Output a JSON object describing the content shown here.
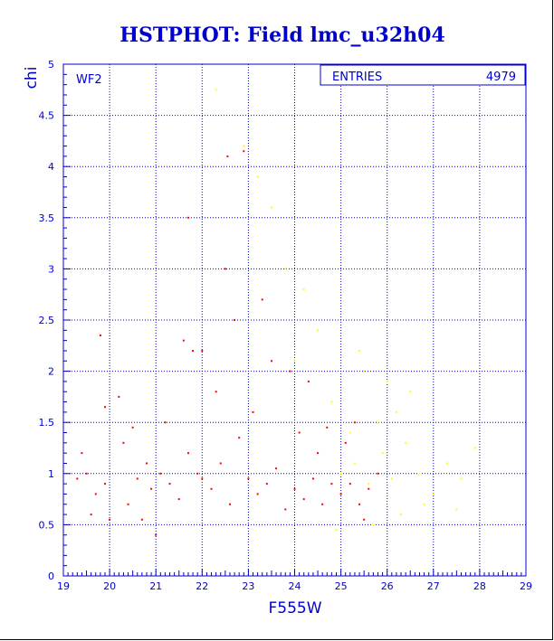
{
  "chart_data": {
    "type": "scatter",
    "title": "HSTPHOT: Field lmc_u32h04",
    "panel_label": "WF2",
    "xlabel": "F555W",
    "ylabel": "chi",
    "xlim": [
      19,
      29
    ],
    "ylim": [
      0,
      5
    ],
    "x_ticks": [
      "19",
      "20",
      "21",
      "22",
      "23",
      "24",
      "25",
      "26",
      "27",
      "28",
      "29"
    ],
    "y_ticks": [
      "0",
      "0.5",
      "1",
      "1.5",
      "2",
      "2.5",
      "3",
      "3.5",
      "4",
      "4.5",
      "5"
    ],
    "grid": true,
    "stats": {
      "label": "ENTRIES",
      "value": "4979"
    },
    "series": [
      {
        "color": "#ff0000",
        "values": [
          [
            19.3,
            0.95
          ],
          [
            19.5,
            1.0
          ],
          [
            19.7,
            0.8
          ],
          [
            19.9,
            0.9
          ],
          [
            19.6,
            0.6
          ],
          [
            19.4,
            1.2
          ],
          [
            19.8,
            2.35
          ],
          [
            19.9,
            1.65
          ],
          [
            20.2,
            1.75
          ],
          [
            20.4,
            0.7
          ],
          [
            20.6,
            0.95
          ],
          [
            20.8,
            1.1
          ],
          [
            20.3,
            1.3
          ],
          [
            20.9,
            0.85
          ],
          [
            20.5,
            1.45
          ],
          [
            20.7,
            0.55
          ],
          [
            21.1,
            1.0
          ],
          [
            21.3,
            0.9
          ],
          [
            21.5,
            0.75
          ],
          [
            21.7,
            1.2
          ],
          [
            21.9,
            1.0
          ],
          [
            21.2,
            1.5
          ],
          [
            21.6,
            2.3
          ],
          [
            21.8,
            2.2
          ],
          [
            22.0,
            0.95
          ],
          [
            22.2,
            0.85
          ],
          [
            22.4,
            1.1
          ],
          [
            22.6,
            0.7
          ],
          [
            22.8,
            1.35
          ],
          [
            22.3,
            1.8
          ],
          [
            22.5,
            3.0
          ],
          [
            22.7,
            2.5
          ],
          [
            23.0,
            0.95
          ],
          [
            23.2,
            0.8
          ],
          [
            23.4,
            0.9
          ],
          [
            23.6,
            1.05
          ],
          [
            23.8,
            0.65
          ],
          [
            23.1,
            1.6
          ],
          [
            23.3,
            2.7
          ],
          [
            23.5,
            2.1
          ],
          [
            24.0,
            0.85
          ],
          [
            24.2,
            0.75
          ],
          [
            24.4,
            0.95
          ],
          [
            24.6,
            0.7
          ],
          [
            24.8,
            0.9
          ],
          [
            24.1,
            1.4
          ],
          [
            24.3,
            1.9
          ],
          [
            24.5,
            1.2
          ],
          [
            25.0,
            0.8
          ],
          [
            25.2,
            0.9
          ],
          [
            25.4,
            0.7
          ],
          [
            25.6,
            0.85
          ],
          [
            25.8,
            1.0
          ],
          [
            25.1,
            1.3
          ],
          [
            25.5,
            0.55
          ],
          [
            25.3,
            1.5
          ],
          [
            22.55,
            4.1
          ],
          [
            22.9,
            4.15
          ],
          [
            21.7,
            3.5
          ],
          [
            22.0,
            2.2
          ],
          [
            23.9,
            2.0
          ],
          [
            24.7,
            1.45
          ],
          [
            21.0,
            0.4
          ],
          [
            20.0,
            0.55
          ]
        ]
      },
      {
        "color": "#ffff00",
        "values": [
          [
            25.0,
            1.0
          ],
          [
            25.3,
            1.1
          ],
          [
            25.6,
            0.9
          ],
          [
            25.9,
            1.2
          ],
          [
            26.1,
            0.95
          ],
          [
            26.4,
            1.3
          ],
          [
            26.7,
            1.0
          ],
          [
            27.0,
            0.8
          ],
          [
            27.3,
            1.1
          ],
          [
            27.6,
            0.95
          ],
          [
            27.9,
            1.25
          ],
          [
            26.2,
            1.6
          ],
          [
            26.5,
            1.8
          ],
          [
            25.8,
            1.5
          ],
          [
            25.5,
            2.0
          ],
          [
            24.8,
            1.7
          ],
          [
            24.5,
            2.4
          ],
          [
            24.2,
            2.8
          ],
          [
            23.8,
            3.0
          ],
          [
            23.5,
            3.6
          ],
          [
            23.2,
            3.9
          ],
          [
            22.9,
            4.2
          ],
          [
            24.0,
            2.1
          ],
          [
            25.2,
            1.4
          ],
          [
            26.8,
            0.7
          ],
          [
            27.5,
            0.65
          ],
          [
            26.3,
            0.6
          ],
          [
            25.7,
            0.5
          ],
          [
            24.9,
            0.45
          ],
          [
            26.0,
            1.9
          ],
          [
            25.4,
            2.2
          ],
          [
            22.3,
            4.75
          ]
        ]
      }
    ]
  }
}
